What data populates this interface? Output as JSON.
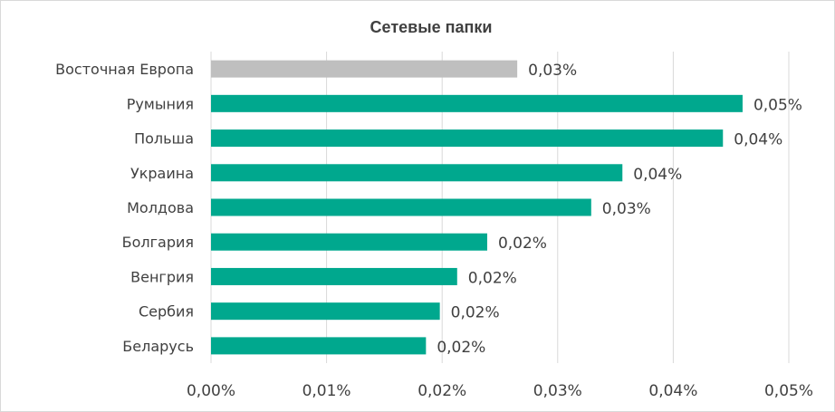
{
  "chart_data": {
    "type": "bar",
    "orientation": "horizontal",
    "title": "Сетевые папки",
    "categories": [
      "Восточная Европа",
      "Румыния",
      "Польша",
      "Украина",
      "Молдова",
      "Болгария",
      "Венгрия",
      "Сербия",
      "Беларусь"
    ],
    "values": [
      0.0265,
      0.046,
      0.0443,
      0.0356,
      0.0329,
      0.0239,
      0.0213,
      0.0198,
      0.0186
    ],
    "value_labels": [
      "0,03%",
      "0,05%",
      "0,04%",
      "0,04%",
      "0,03%",
      "0,02%",
      "0,02%",
      "0,02%",
      "0,02%"
    ],
    "x_ticks": [
      "0,00%",
      "0,01%",
      "0,02%",
      "0,03%",
      "0,04%",
      "0,05%"
    ],
    "xlim": [
      0,
      0.05
    ],
    "unit": "%",
    "grid": true,
    "legend": "none",
    "colors": {
      "highlight": "#bfbfbf",
      "bar": "#00a88e"
    },
    "highlight_index": 0
  }
}
